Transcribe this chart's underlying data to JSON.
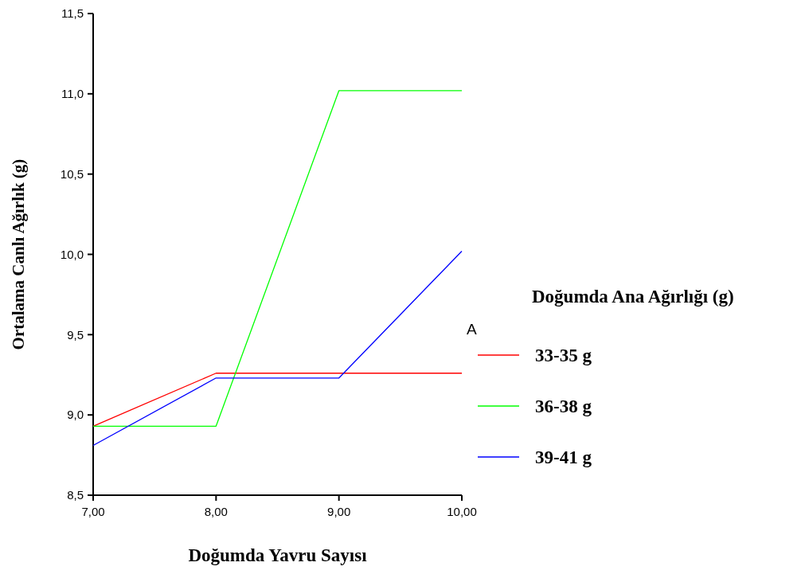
{
  "chart_data": {
    "type": "line",
    "xlabel": "Doğumda Yavru Sayısı",
    "ylabel": "Ortalama Canlı Ağırlık (g)",
    "legend_title": "Doğumda Ana Ağırlığı (g)",
    "annotations": [
      "A"
    ],
    "x": [
      7,
      8,
      9,
      10
    ],
    "series": [
      {
        "name": "33-35 g",
        "color": "#ff0000",
        "values": [
          8.93,
          9.26,
          9.26,
          9.26
        ]
      },
      {
        "name": "36-38 g",
        "color": "#00ff00",
        "values": [
          8.93,
          8.93,
          11.02,
          11.02
        ]
      },
      {
        "name": "39-41 g",
        "color": "#0000ff",
        "values": [
          8.81,
          9.23,
          9.23,
          10.02
        ]
      }
    ],
    "xlim": [
      7,
      10
    ],
    "xticks": [
      {
        "value": 7,
        "label": "7,00"
      },
      {
        "value": 8,
        "label": "8,00"
      },
      {
        "value": 9,
        "label": "9,00"
      },
      {
        "value": 10,
        "label": "10,00"
      }
    ],
    "ylim": [
      8.5,
      11.5
    ],
    "yticks": [
      {
        "value": 8.5,
        "label": "8,5"
      },
      {
        "value": 9,
        "label": "9,0"
      },
      {
        "value": 9.5,
        "label": "9,5"
      },
      {
        "value": 10,
        "label": "10,0"
      },
      {
        "value": 10.5,
        "label": "10,5"
      },
      {
        "value": 11,
        "label": "11,0"
      },
      {
        "value": 11.5,
        "label": "11,5"
      }
    ],
    "grid": false,
    "legend": "right",
    "marker": "none",
    "line_style": "solid"
  }
}
